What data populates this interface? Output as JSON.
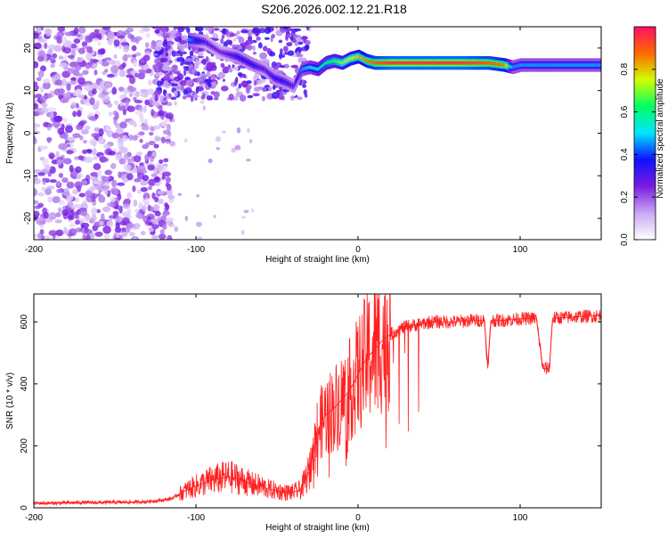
{
  "title": "S206.2026.002.12.21.R18",
  "chart_data": [
    {
      "type": "heatmap",
      "name": "spectrogram",
      "xlabel": "Height of straight line (km)",
      "ylabel": "Frequency (Hz)",
      "xlim": [
        -200,
        150
      ],
      "ylim": [
        -25,
        25
      ],
      "xticks": [
        -200,
        -100,
        0,
        100
      ],
      "yticks": [
        -20,
        -10,
        0,
        10,
        20
      ],
      "colorbar": {
        "label": "Normalized spectral amplitude",
        "range": [
          0,
          1
        ],
        "ticks": [
          0.0,
          0.2,
          0.4,
          0.6,
          0.8
        ],
        "colors": [
          "#ffffff",
          "#c9a8f2",
          "#7a1ce0",
          "#1010ff",
          "#00e5ff",
          "#00ff66",
          "#d0ff00",
          "#ff6a00",
          "#ff1060"
        ]
      },
      "ridge": {
        "x": [
          -105,
          -95,
          -85,
          -75,
          -65,
          -58,
          -52,
          -45,
          -40,
          -35,
          -30,
          -25,
          -20,
          -15,
          -10,
          -5,
          0,
          5,
          10,
          20,
          40,
          60,
          80,
          90,
          95,
          100,
          120,
          150
        ],
        "freq": [
          22,
          21.5,
          19,
          18,
          16,
          15,
          13,
          12,
          11,
          15,
          15.5,
          15,
          16.5,
          17,
          16.5,
          17.5,
          18,
          17,
          16.5,
          16.5,
          16.5,
          16.5,
          16.5,
          16,
          15.5,
          16,
          16,
          16
        ],
        "amplitude": [
          0.45,
          0.3,
          0.25,
          0.35,
          0.35,
          0.3,
          0.35,
          0.35,
          0.3,
          0.45,
          0.5,
          0.55,
          0.6,
          0.65,
          0.7,
          0.75,
          0.8,
          0.85,
          0.9,
          0.95,
          0.95,
          0.95,
          0.9,
          0.85,
          0.45,
          0.45,
          0.45,
          0.45
        ]
      }
    },
    {
      "type": "line",
      "name": "snr",
      "xlabel": "Height of straight line (km)",
      "ylabel": "SNR (10 * v/v)",
      "xlim": [
        -200,
        150
      ],
      "ylim": [
        0,
        690
      ],
      "xticks": [
        -200,
        -100,
        0,
        100
      ],
      "yticks": [
        0,
        200,
        400,
        600
      ],
      "color": "#ff2020",
      "x": [
        -200,
        -190,
        -180,
        -170,
        -160,
        -150,
        -140,
        -130,
        -120,
        -115,
        -110,
        -105,
        -100,
        -95,
        -90,
        -85,
        -80,
        -75,
        -70,
        -65,
        -60,
        -55,
        -50,
        -45,
        -40,
        -35,
        -30,
        -27,
        -25,
        -22,
        -20,
        -15,
        -10,
        -5,
        0,
        5,
        10,
        15,
        20,
        25,
        30,
        35,
        40,
        45,
        50,
        60,
        70,
        78,
        80,
        82,
        85,
        90,
        100,
        110,
        114,
        118,
        120,
        130,
        140,
        150
      ],
      "y": [
        15,
        15,
        16,
        17,
        17,
        18,
        18,
        20,
        25,
        30,
        45,
        60,
        70,
        80,
        90,
        95,
        100,
        95,
        85,
        75,
        70,
        60,
        55,
        50,
        50,
        60,
        120,
        200,
        250,
        280,
        300,
        320,
        350,
        380,
        430,
        480,
        510,
        540,
        560,
        575,
        585,
        590,
        595,
        600,
        600,
        600,
        605,
        605,
        450,
        605,
        605,
        605,
        610,
        612,
        450,
        450,
        612,
        615,
        618,
        620
      ]
    }
  ]
}
